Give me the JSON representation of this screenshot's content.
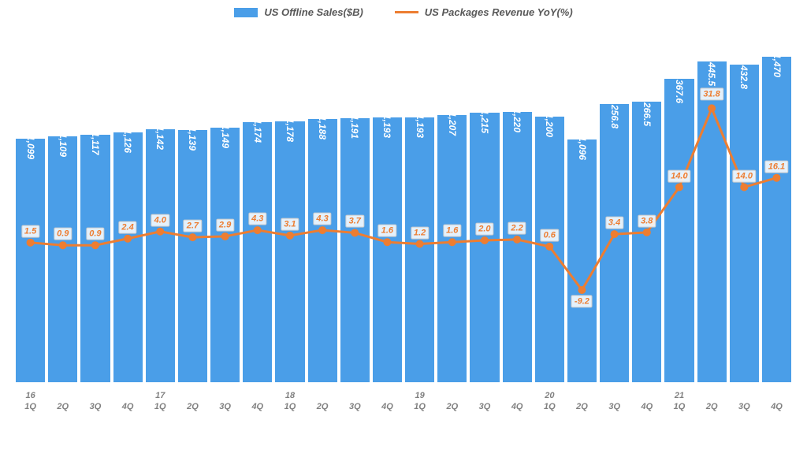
{
  "legend": {
    "series1": "US Offline Sales($B)",
    "series2": "US Packages Revenue YoY(%)"
  },
  "chart": {
    "type": "bar+line",
    "background_color": "#ffffff",
    "bar_color": "#4a9ee8",
    "bar_label_color": "#ffffff",
    "line_color": "#ed7d31",
    "line_width": 3,
    "marker_color": "#ed7d31",
    "marker_size": 5,
    "text_color": "#595959",
    "x_label_color": "#808080",
    "legend_fontsize": 13,
    "bar_label_fontsize": 12,
    "line_label_fontsize": 11,
    "x_label_fontsize": 11,
    "bar_ylim": [
      0,
      1600
    ],
    "line_ylim": [
      -30,
      50
    ],
    "periods": [
      {
        "year": "16",
        "q": "1Q",
        "bar": 1099,
        "line": 1.5
      },
      {
        "year": "",
        "q": "2Q",
        "bar": 1109,
        "line": 0.9
      },
      {
        "year": "",
        "q": "3Q",
        "bar": 1117,
        "line": 0.9
      },
      {
        "year": "",
        "q": "4Q",
        "bar": 1126,
        "line": 2.4
      },
      {
        "year": "17",
        "q": "1Q",
        "bar": 1142,
        "line": 4.0
      },
      {
        "year": "",
        "q": "2Q",
        "bar": 1139,
        "line": 2.7
      },
      {
        "year": "",
        "q": "3Q",
        "bar": 1149,
        "line": 2.9
      },
      {
        "year": "",
        "q": "4Q",
        "bar": 1174,
        "line": 4.3
      },
      {
        "year": "18",
        "q": "1Q",
        "bar": 1178,
        "line": 3.1
      },
      {
        "year": "",
        "q": "2Q",
        "bar": 1188,
        "line": 4.3
      },
      {
        "year": "",
        "q": "3Q",
        "bar": 1191,
        "line": 3.7
      },
      {
        "year": "",
        "q": "4Q",
        "bar": 1193,
        "line": 1.6
      },
      {
        "year": "19",
        "q": "1Q",
        "bar": 1193,
        "line": 1.2
      },
      {
        "year": "",
        "q": "2Q",
        "bar": 1207,
        "line": 1.6
      },
      {
        "year": "",
        "q": "3Q",
        "bar": 1215,
        "line": 2.0
      },
      {
        "year": "",
        "q": "4Q",
        "bar": 1220,
        "line": 2.2
      },
      {
        "year": "20",
        "q": "1Q",
        "bar": 1200,
        "line": 0.6
      },
      {
        "year": "",
        "q": "2Q",
        "bar": 1096,
        "line": -9.2
      },
      {
        "year": "",
        "q": "3Q",
        "bar": 1256.8,
        "line": 3.4
      },
      {
        "year": "",
        "q": "4Q",
        "bar": 1266.5,
        "line": 3.8
      },
      {
        "year": "21",
        "q": "1Q",
        "bar": 1367.6,
        "line": 14.0
      },
      {
        "year": "",
        "q": "2Q",
        "bar": 1445.5,
        "line": 31.8
      },
      {
        "year": "",
        "q": "3Q",
        "bar": 1432.8,
        "line": 14.0
      },
      {
        "year": "",
        "q": "4Q",
        "bar": 1470.0,
        "line": 16.1
      }
    ]
  }
}
